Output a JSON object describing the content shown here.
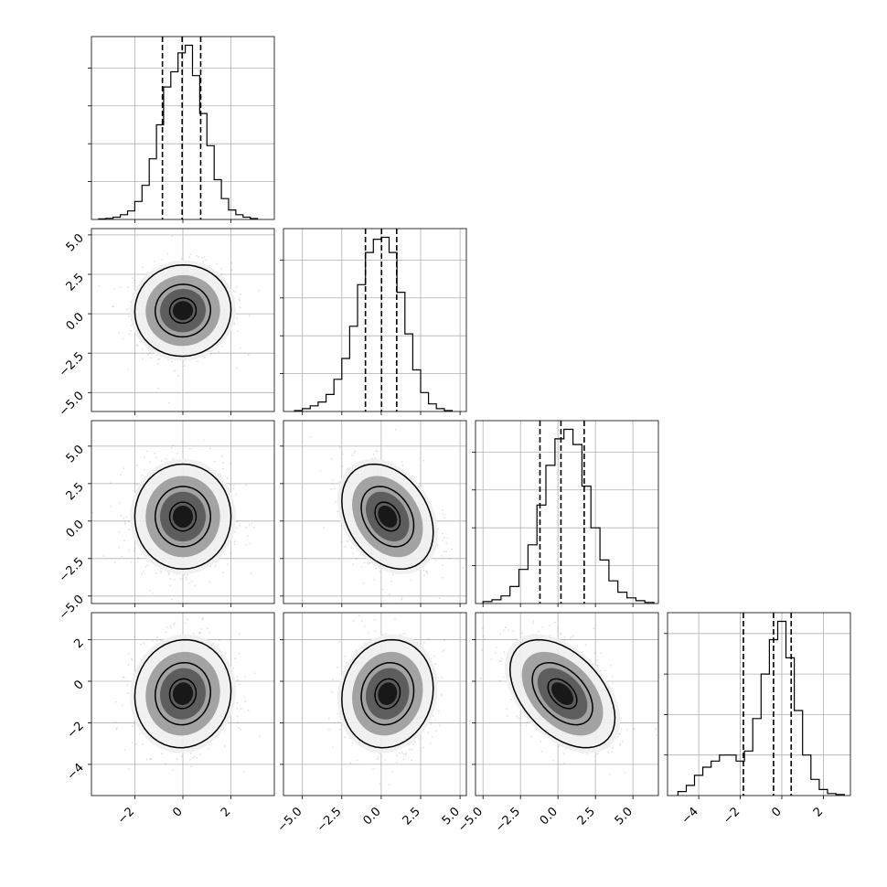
{
  "chart_data": {
    "type": "corner",
    "parameters": 4,
    "grid": true,
    "colors": {
      "line": "#000000",
      "grid": "#b0b0b0",
      "points": "#7f7f7f"
    },
    "axes": [
      {
        "range": [
          -3.8,
          3.8
        ],
        "ticks": [
          -2,
          0,
          2
        ],
        "tick_labels": [
          "−2",
          "0",
          "2"
        ]
      },
      {
        "range": [
          -6.2,
          5.4
        ],
        "ticks": [
          -5.0,
          -2.5,
          0.0,
          2.5,
          5.0
        ],
        "tick_labels": [
          "−5.0",
          "−2.5",
          "0.0",
          "2.5",
          "5.0"
        ]
      },
      {
        "range": [
          -5.5,
          6.7
        ],
        "ticks": [
          -5.0,
          -2.5,
          0.0,
          2.5,
          5.0
        ],
        "tick_labels": [
          "−5.0",
          "−2.5",
          "0.0",
          "2.5",
          "5.0"
        ]
      },
      {
        "range": [
          -5.5,
          3.3
        ],
        "ticks": [
          -4,
          -2,
          0,
          2
        ],
        "tick_labels": [
          "−4",
          "−2",
          "0",
          "2"
        ]
      }
    ],
    "histograms": [
      {
        "bin_edges": [
          -3.5,
          -3.2,
          -2.9,
          -2.6,
          -2.3,
          -2.0,
          -1.7,
          -1.4,
          -1.1,
          -0.8,
          -0.5,
          -0.2,
          0.1,
          0.4,
          0.7,
          1.0,
          1.3,
          1.6,
          1.9,
          2.2,
          2.5,
          2.8,
          3.1
        ],
        "counts": [
          0.3,
          0.6,
          1.2,
          2.5,
          4.5,
          9.5,
          18,
          32,
          50,
          70,
          78,
          88,
          92,
          76,
          56,
          39,
          21,
          11,
          5,
          2.5,
          1.2,
          0.5
        ],
        "quantiles": [
          -0.85,
          -0.03,
          0.74
        ]
      },
      {
        "bin_edges": [
          -5.5,
          -5.0,
          -4.5,
          -4.0,
          -3.5,
          -3.0,
          -2.5,
          -2.0,
          -1.5,
          -1.0,
          -0.5,
          0.0,
          0.5,
          1.0,
          1.5,
          2.0,
          2.5,
          3.0,
          3.5,
          4.0,
          4.5
        ],
        "counts": [
          0.5,
          1.5,
          3,
          5,
          9,
          17,
          28,
          45,
          67,
          84,
          91,
          92,
          84,
          63,
          41,
          22,
          10,
          4,
          1.5,
          0.5
        ],
        "quantiles": [
          -1.0,
          0.02,
          0.98
        ]
      },
      {
        "bin_edges": [
          -5.0,
          -4.4,
          -3.8,
          -3.2,
          -2.6,
          -2.0,
          -1.4,
          -0.8,
          -0.2,
          0.4,
          1.0,
          1.6,
          2.2,
          2.8,
          3.4,
          4.0,
          4.6,
          5.2,
          5.8,
          6.4
        ],
        "counts": [
          1,
          2,
          4,
          9,
          18,
          31,
          52,
          73,
          87,
          92,
          84,
          62,
          40,
          23,
          12,
          6,
          3,
          1.5,
          0.6
        ],
        "quantiles": [
          -1.2,
          0.2,
          1.75
        ]
      },
      {
        "bin_edges": [
          -5.0,
          -4.6,
          -4.2,
          -3.8,
          -3.4,
          -3.0,
          -2.6,
          -2.2,
          -1.8,
          -1.4,
          -1.0,
          -0.6,
          -0.2,
          0.2,
          0.6,
          1.0,
          1.4,
          1.8,
          2.2,
          2.6,
          3.0
        ],
        "counts": [
          2,
          5,
          10,
          14,
          17,
          20,
          20,
          17,
          22,
          38,
          60,
          77,
          86,
          68,
          42,
          20,
          8,
          3,
          1,
          0.5
        ],
        "quantiles": [
          -1.85,
          -0.4,
          0.45
        ]
      }
    ],
    "pairs": [
      {
        "row": 1,
        "col": 0,
        "correlation": 0.02,
        "center": [
          0.0,
          0.2
        ],
        "spread": [
          1.0,
          1.45
        ]
      },
      {
        "row": 2,
        "col": 0,
        "correlation": 0.0,
        "center": [
          0.0,
          0.3
        ],
        "spread": [
          1.0,
          1.75
        ]
      },
      {
        "row": 2,
        "col": 1,
        "correlation": -0.3,
        "center": [
          0.4,
          0.3
        ],
        "spread": [
          1.45,
          1.75
        ]
      },
      {
        "row": 3,
        "col": 0,
        "correlation": 0.05,
        "center": [
          0.0,
          -0.6
        ],
        "spread": [
          1.0,
          1.3
        ]
      },
      {
        "row": 3,
        "col": 1,
        "correlation": 0.1,
        "center": [
          0.4,
          -0.6
        ],
        "spread": [
          1.45,
          1.3
        ]
      },
      {
        "row": 3,
        "col": 2,
        "correlation": -0.45,
        "center": [
          0.3,
          -0.6
        ],
        "spread": [
          1.75,
          1.3
        ]
      }
    ],
    "contour_levels": [
      "inner",
      "middle",
      "outer"
    ]
  }
}
